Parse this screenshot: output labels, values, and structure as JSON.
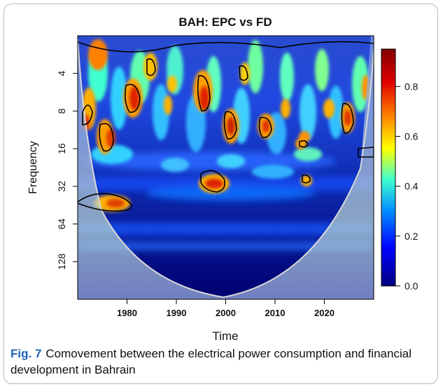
{
  "caption": {
    "label": "Fig. 7",
    "text": "Comovement between the electrical power consumption and financial development in Bahrain"
  },
  "chart_data": {
    "type": "heatmap",
    "title": "BAH: EPC vs FD",
    "xlabel": "Time",
    "ylabel": "Frequency",
    "x_ticks": [
      1980,
      1990,
      2000,
      2010,
      2020
    ],
    "xlim": [
      1970,
      2030
    ],
    "y_ticks": [
      4,
      8,
      16,
      32,
      64,
      128
    ],
    "y_scale": "log2",
    "ylim": [
      2,
      256
    ],
    "colorbar": {
      "ticks": [
        0.0,
        0.2,
        0.4,
        0.6,
        0.8
      ],
      "range": [
        0,
        0.95
      ],
      "colors": [
        "#000080",
        "#0000ff",
        "#00aaff",
        "#40ffd0",
        "#ffff00",
        "#ff8000",
        "#e00000",
        "#800000"
      ]
    },
    "cone_of_influence": "shaded outside",
    "significant_regions": [
      {
        "period": "1970-2028",
        "frequency": "2-6"
      },
      {
        "period": "1973-1975",
        "frequency": "7-11"
      },
      {
        "period": "1978-1979",
        "frequency": "10-16"
      },
      {
        "period": "1983-1985",
        "frequency": "6-10"
      },
      {
        "period": "1986-1987",
        "frequency": "4-6"
      },
      {
        "period": "1993-1996",
        "frequency": "6-10"
      },
      {
        "period": "1995-2001",
        "frequency": "24-36"
      },
      {
        "period": "2001-2003",
        "frequency": "5-7"
      },
      {
        "period": "2004-2006",
        "frequency": "8-12"
      },
      {
        "period": "2009-2011",
        "frequency": "8-11"
      },
      {
        "period": "2014-2016",
        "frequency": "14-17"
      },
      {
        "period": "2025-2028",
        "frequency": "8-12"
      },
      {
        "period": "1970-1978",
        "frequency": "32-44"
      }
    ]
  }
}
